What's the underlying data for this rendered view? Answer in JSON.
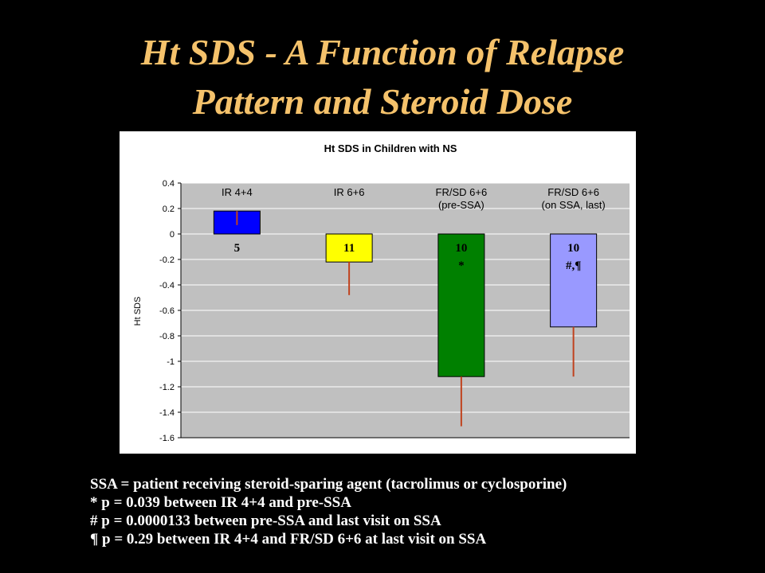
{
  "slide": {
    "title_line1": "Ht SDS - A Function of Relapse",
    "title_line2": "Pattern and Steroid Dose"
  },
  "chart_data": {
    "type": "bar",
    "title": "Ht SDS in Children with NS",
    "xlabel": "",
    "ylabel": "Ht SDS",
    "ylim": [
      -1.6,
      0.4
    ],
    "yticks": [
      0.4,
      0.2,
      0,
      -0.2,
      -0.4,
      -0.6,
      -0.8,
      -1,
      -1.2,
      -1.4,
      -1.6
    ],
    "ytick_labels": [
      "0.4",
      "0.2",
      "0",
      "-0.2",
      "-0.4",
      "-0.6",
      "-0.8",
      "-1",
      "-1.2",
      "-1.4",
      "-1.6"
    ],
    "grid": true,
    "legend": "none",
    "categories": [
      [
        "IR 4+4"
      ],
      [
        "IR 6+6"
      ],
      [
        "FR/SD 6+6",
        "(pre-SSA)"
      ],
      [
        "FR/SD 6+6",
        "(on SSA, last)"
      ]
    ],
    "values": [
      0.18,
      -0.22,
      -1.12,
      -0.73
    ],
    "error_bars": [
      [
        0.07,
        0.18
      ],
      [
        -0.48,
        -0.22
      ],
      [
        -1.51,
        -1.12
      ],
      [
        -1.12,
        -0.73
      ]
    ],
    "bar_labels": [
      [
        "5"
      ],
      [
        "11"
      ],
      [
        "10",
        "*"
      ],
      [
        "10",
        "#,¶"
      ]
    ],
    "bar_colors": [
      "#0000FF",
      "#FFFF00",
      "#008000",
      "#9999FF"
    ],
    "error_color": "#C0421E",
    "plot_background": "#C0C0C0",
    "grid_color": "#FFFFFF"
  },
  "notes": [
    "SSA = patient receiving steroid-sparing agent (tacrolimus or cyclosporine)",
    "* p = 0.039 between IR 4+4 and pre-SSA",
    "# p = 0.0000133 between pre-SSA and last visit on SSA",
    "¶ p = 0.29 between IR 4+4 and FR/SD 6+6 at last visit on SSA"
  ]
}
